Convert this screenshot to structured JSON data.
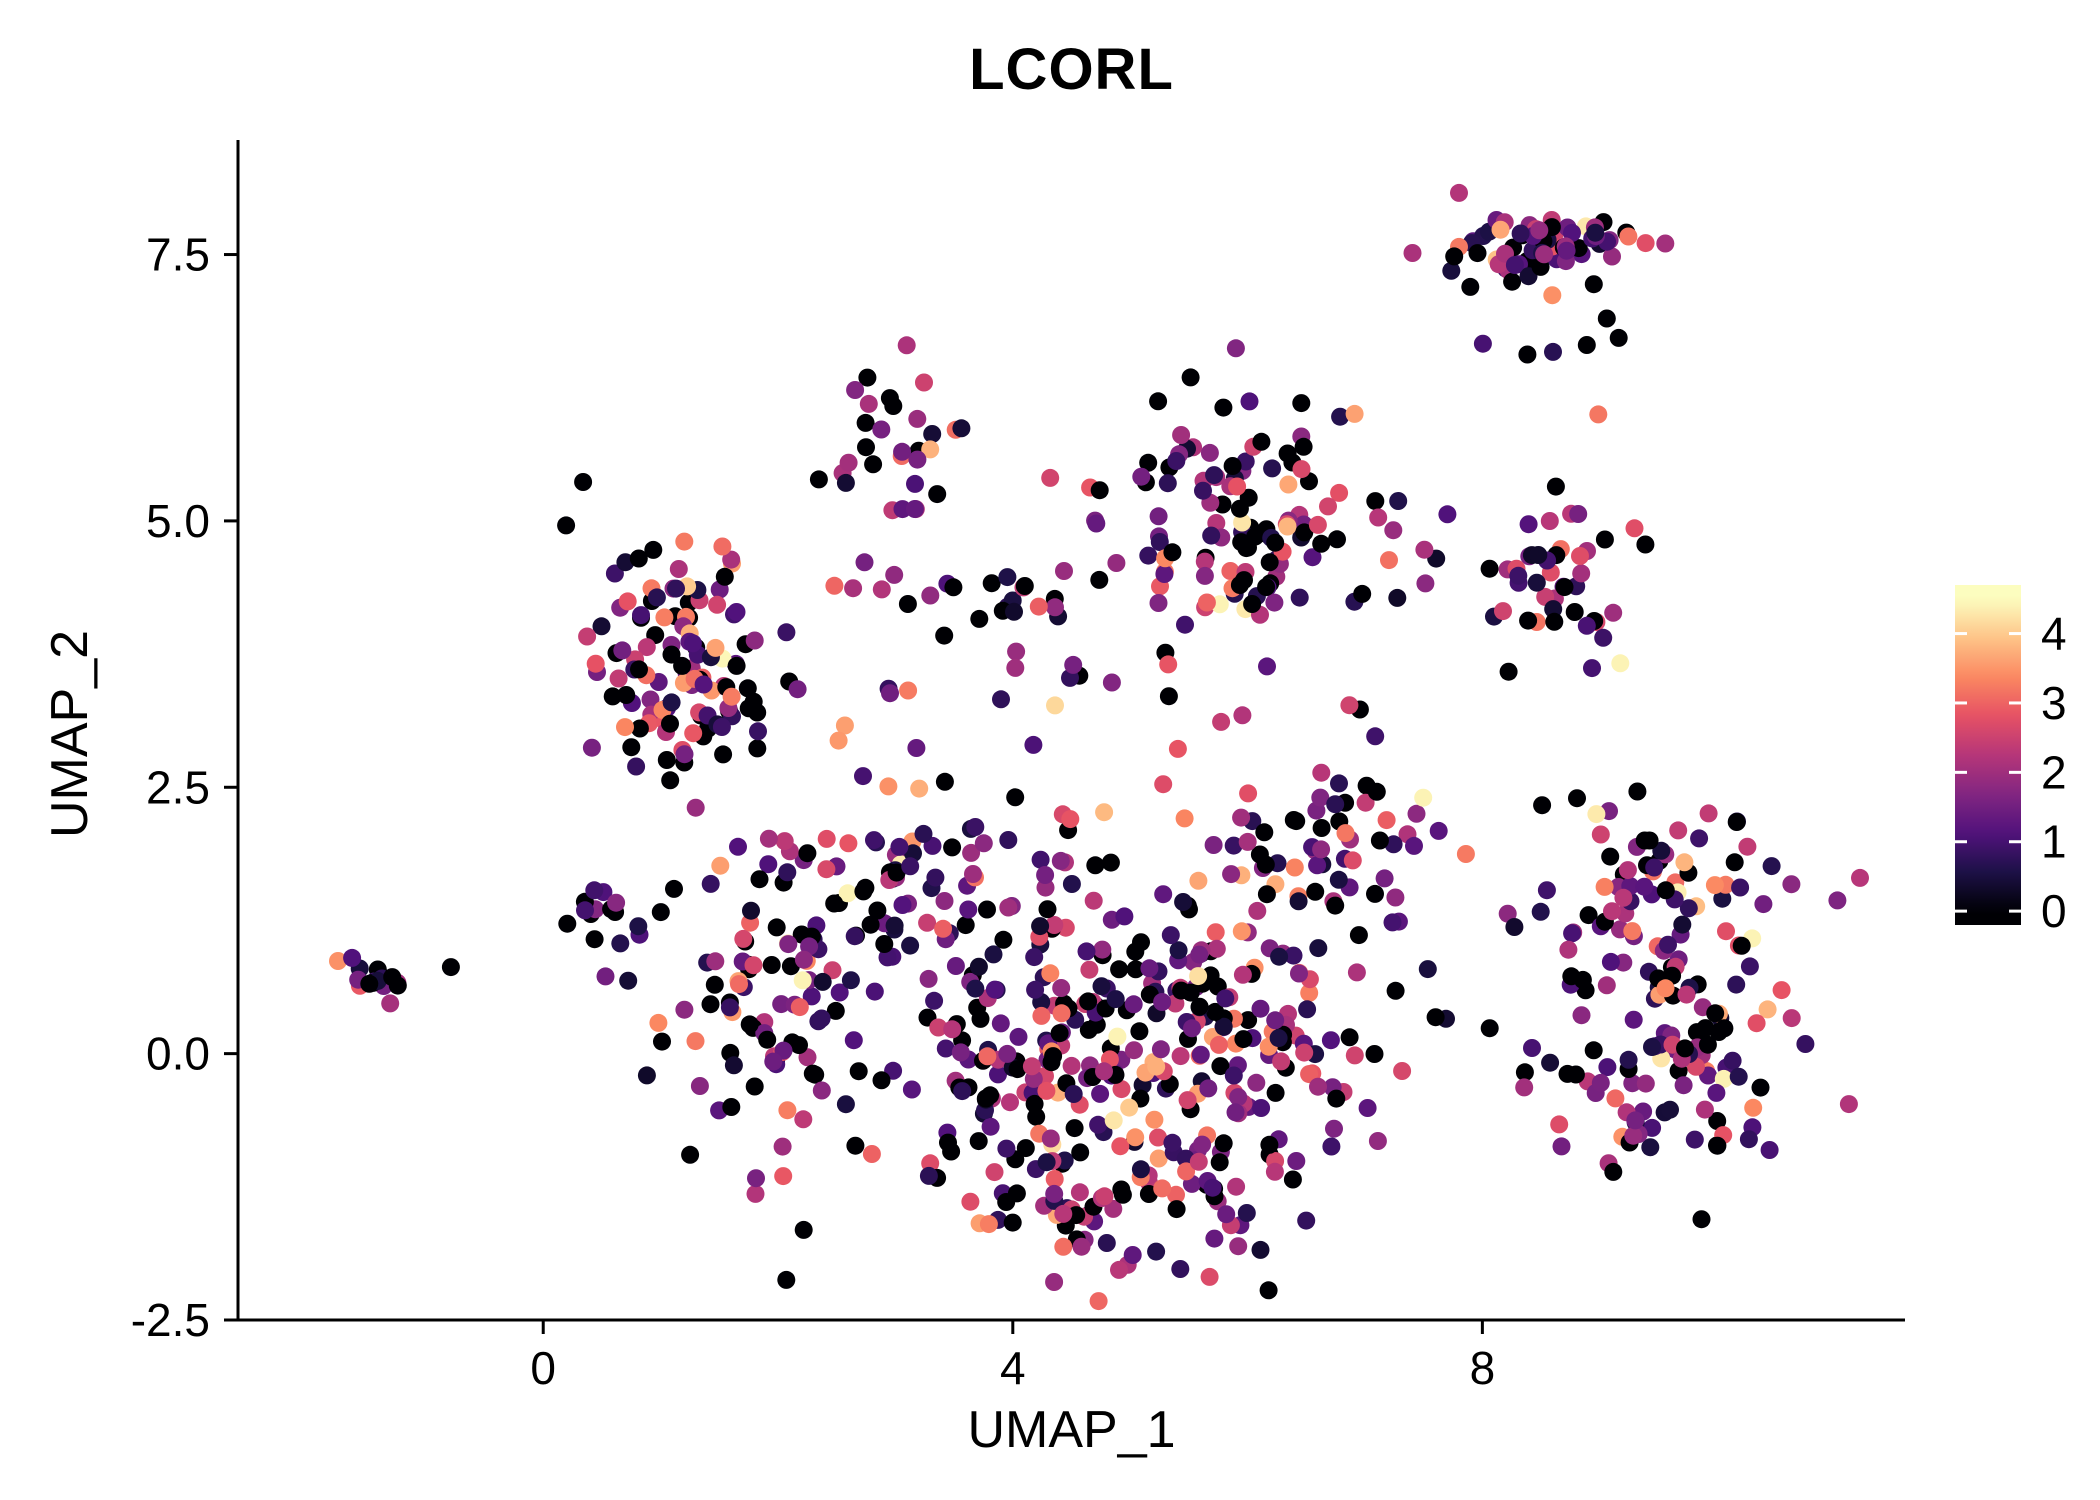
{
  "title": "LCORL",
  "chart_data": {
    "type": "scatter",
    "title": "LCORL",
    "xlabel": "UMAP_1",
    "ylabel": "UMAP_2",
    "grid": false,
    "x_domain": [
      -2.6,
      11.6
    ],
    "y_domain": [
      -2.5,
      8.5
    ],
    "x_ticks": [
      {
        "value": 0,
        "label": "0"
      },
      {
        "value": 4,
        "label": "4"
      },
      {
        "value": 8,
        "label": "8"
      }
    ],
    "y_ticks": [
      {
        "value": -2.5,
        "label": "-2.5"
      },
      {
        "value": 0,
        "label": "0.0"
      },
      {
        "value": 2.5,
        "label": "2.5"
      },
      {
        "value": 5,
        "label": "5.0"
      },
      {
        "value": 7.5,
        "label": "7.5"
      }
    ],
    "legend": {
      "position": "right",
      "ticks": [
        0,
        1,
        2,
        3,
        4
      ],
      "bar_domain": [
        -0.2,
        4.7
      ],
      "value_domain": [
        0,
        4.5
      ]
    },
    "colormap": {
      "name": "magma",
      "stops": [
        [
          0.0,
          "#000004"
        ],
        [
          0.125,
          "#1D1147"
        ],
        [
          0.25,
          "#51127C"
        ],
        [
          0.375,
          "#822681"
        ],
        [
          0.5,
          "#B63679"
        ],
        [
          0.625,
          "#E65164"
        ],
        [
          0.75,
          "#FB8861"
        ],
        [
          0.875,
          "#FEC488"
        ],
        [
          1.0,
          "#FCFDBF"
        ]
      ]
    },
    "expression_mixture": [
      {
        "p": 0.32,
        "range": [
          0,
          0
        ]
      },
      {
        "p": 0.24,
        "range": [
          0.3,
          1.2
        ]
      },
      {
        "p": 0.29,
        "range": [
          1.2,
          2.4
        ]
      },
      {
        "p": 0.11,
        "range": [
          2.4,
          3.3
        ]
      },
      {
        "p": 0.037,
        "range": [
          3.3,
          3.8
        ]
      },
      {
        "p": 0.003,
        "range": [
          4.0,
          4.5
        ]
      }
    ],
    "clusters": [
      {
        "name": "top-right",
        "cx": 8.6,
        "cy": 7.55,
        "sx": 0.42,
        "sy": 0.18,
        "n": 70,
        "seed": 11,
        "hot": 0.1
      },
      {
        "name": "top-right-tail",
        "cx": 8.6,
        "cy": 6.8,
        "sx": 0.4,
        "sy": 0.22,
        "n": 6,
        "seed": 12,
        "hot": 0
      },
      {
        "name": "lone-salmon",
        "cx": 8.98,
        "cy": 6.05,
        "sx": 0.02,
        "sy": 0.02,
        "n": 1,
        "seed": 40,
        "hot": 0,
        "value": 3.2
      },
      {
        "name": "upper-mid-left",
        "cx": 2.95,
        "cy": 5.7,
        "sx": 0.3,
        "sy": 0.32,
        "n": 30,
        "seed": 13,
        "hot": 0
      },
      {
        "name": "upper-mid-small",
        "cx": 4.8,
        "cy": 5.35,
        "sx": 0.25,
        "sy": 0.15,
        "n": 5,
        "seed": 41,
        "hot": 0
      },
      {
        "name": "top-middle",
        "cx": 5.9,
        "cy": 4.95,
        "sx": 0.5,
        "sy": 0.6,
        "n": 115,
        "seed": 14,
        "hot": 0.1
      },
      {
        "name": "right-middle",
        "cx": 8.55,
        "cy": 4.35,
        "sx": 0.35,
        "sy": 0.45,
        "n": 45,
        "seed": 15,
        "hot": 0.15
      },
      {
        "name": "bridge-right",
        "cx": 7.4,
        "cy": 4.5,
        "sx": 0.35,
        "sy": 0.3,
        "n": 8,
        "seed": 16,
        "hot": 0
      },
      {
        "name": "left-large",
        "cx": 1.1,
        "cy": 3.7,
        "sx": 0.45,
        "sy": 0.55,
        "n": 115,
        "seed": 17,
        "hot": 0
      },
      {
        "name": "mid-band",
        "cx": 3.8,
        "cy": 4.3,
        "sx": 0.75,
        "sy": 0.18,
        "n": 25,
        "seed": 18,
        "hot": 0
      },
      {
        "name": "sparse-mid",
        "cx": 4.6,
        "cy": 3.2,
        "sx": 1.5,
        "sy": 0.55,
        "n": 30,
        "seed": 19,
        "hot": 0.1
      },
      {
        "name": "far-left",
        "cx": -1.45,
        "cy": 0.7,
        "sx": 0.2,
        "sy": 0.1,
        "n": 18,
        "seed": 20,
        "hot": 0
      },
      {
        "name": "far-left-single",
        "cx": -0.75,
        "cy": 0.78,
        "sx": 0.03,
        "sy": 0.03,
        "n": 1,
        "seed": 21,
        "hot": 0,
        "value": 0
      },
      {
        "name": "small-left",
        "cx": 0.5,
        "cy": 1.3,
        "sx": 0.16,
        "sy": 0.13,
        "n": 14,
        "seed": 22,
        "hot": 0
      },
      {
        "name": "central-left-arm",
        "cx": 2.0,
        "cy": 0.4,
        "sx": 0.5,
        "sy": 0.85,
        "n": 90,
        "seed": 23,
        "hot": 0.1
      },
      {
        "name": "central-core",
        "cx": 4.3,
        "cy": 0.2,
        "sx": 0.9,
        "sy": 0.9,
        "n": 200,
        "seed": 24,
        "hot": 0.25
      },
      {
        "name": "central-right",
        "cx": 5.8,
        "cy": 0.0,
        "sx": 0.8,
        "sy": 0.9,
        "n": 150,
        "seed": 25,
        "hot": 0.25
      },
      {
        "name": "central-top-right",
        "cx": 6.6,
        "cy": 1.9,
        "sx": 0.5,
        "sy": 0.5,
        "n": 60,
        "seed": 26,
        "hot": 0.1
      },
      {
        "name": "central-bottom",
        "cx": 4.9,
        "cy": -1.4,
        "sx": 0.75,
        "sy": 0.35,
        "n": 60,
        "seed": 27,
        "hot": 0.25
      },
      {
        "name": "central-top-left",
        "cx": 3.0,
        "cy": 1.6,
        "sx": 0.6,
        "sy": 0.5,
        "n": 60,
        "seed": 28,
        "hot": 0
      },
      {
        "name": "right-upper",
        "cx": 9.6,
        "cy": 1.6,
        "sx": 0.55,
        "sy": 0.38,
        "n": 70,
        "seed": 29,
        "hot": 0.15
      },
      {
        "name": "right-lower",
        "cx": 9.6,
        "cy": 0.0,
        "sx": 0.62,
        "sy": 0.55,
        "n": 110,
        "seed": 30,
        "hot": 0.2
      }
    ]
  }
}
